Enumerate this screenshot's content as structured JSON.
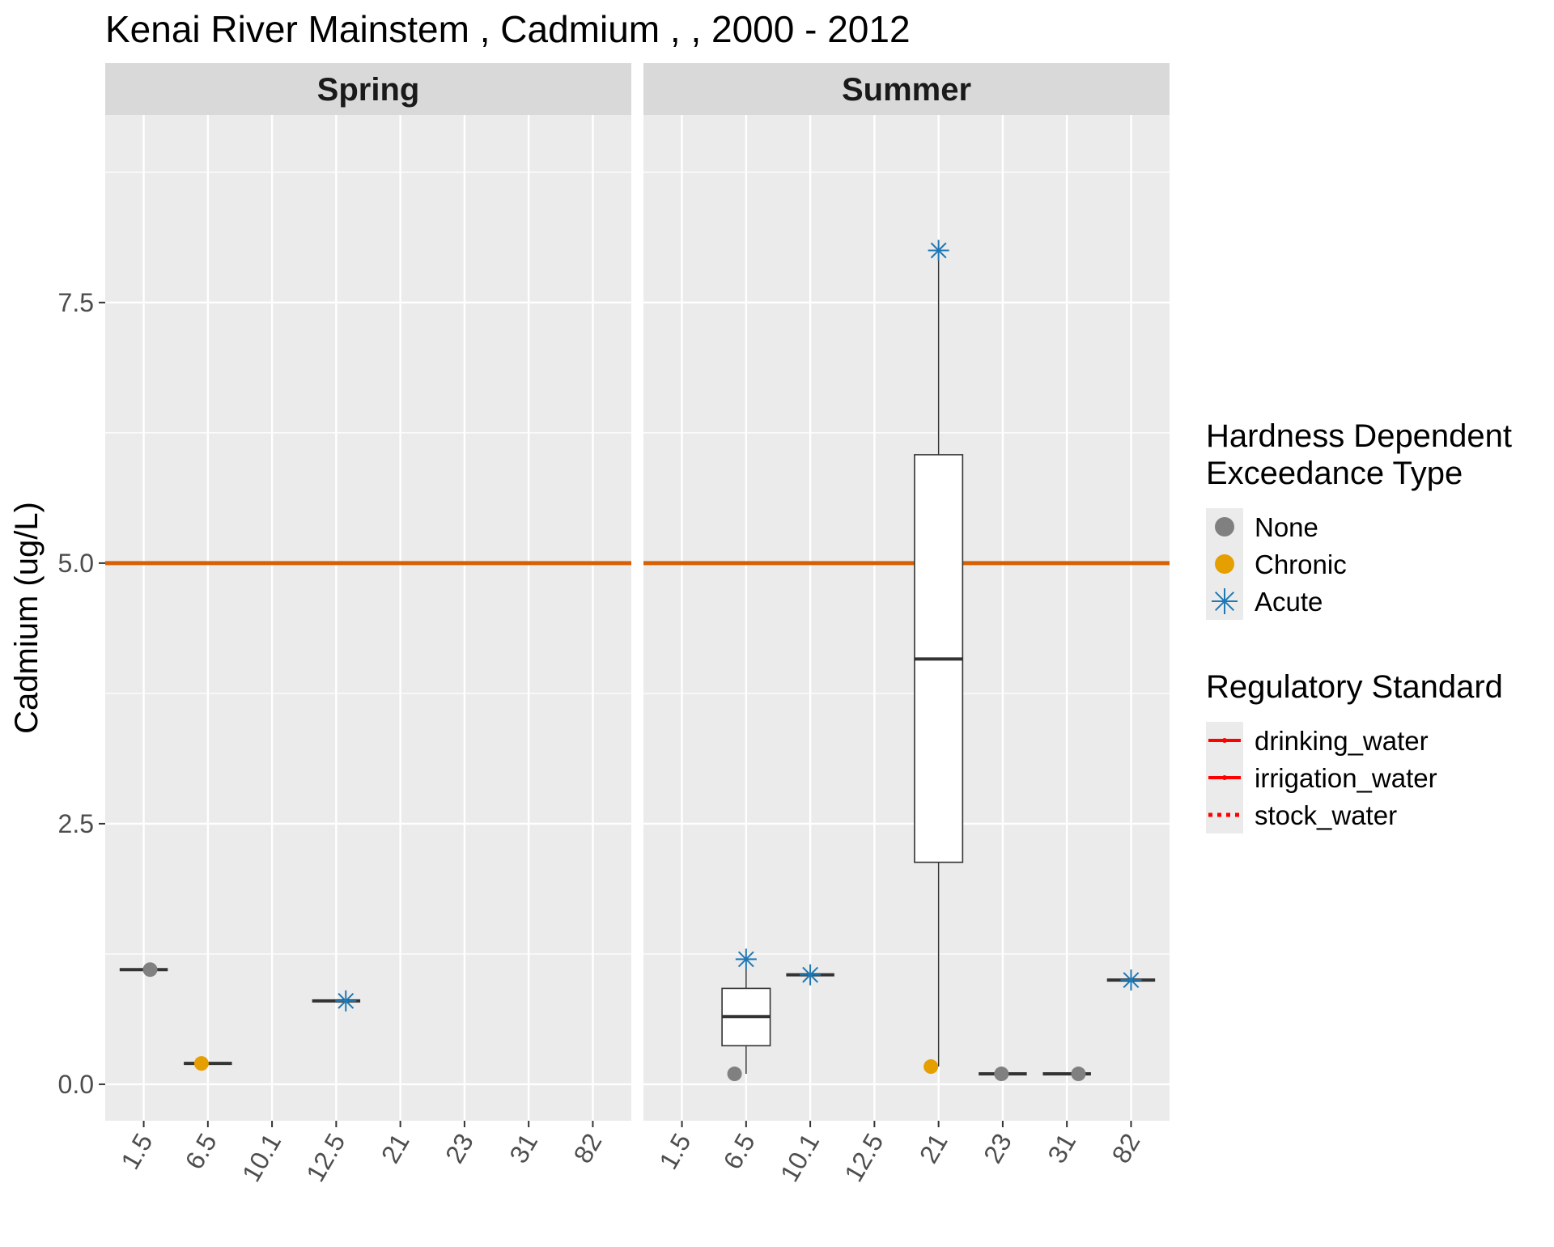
{
  "chart_data": {
    "type": "boxplot",
    "title": "Kenai River Mainstem , Cadmium ,  , 2000 - 2012",
    "xlabel": "",
    "ylabel": "Cadmium (ug/L)",
    "ylim": [
      -0.35,
      9.3
    ],
    "y_breaks": [
      0,
      2.5,
      5,
      7.5
    ],
    "y_tick_labels": [
      "0.0",
      "2.5",
      "5.0",
      "7.5"
    ],
    "y_minor_breaks": [
      1.25,
      3.75,
      6.25,
      8.75
    ],
    "categories": [
      "1.5",
      "6.5",
      "10.1",
      "12.5",
      "21",
      "23",
      "31",
      "82"
    ],
    "grid": true,
    "reference_line": {
      "y": 5.0,
      "color": "#d95f02"
    },
    "colors": {
      "panel_bg": "#ebebeb",
      "strip_bg": "#d9d9d9",
      "grid": "#ffffff",
      "none": "#808080",
      "chronic": "#e69f00",
      "acute": "#1f78b4",
      "median": "#333333",
      "regulatory": "#ff0000"
    },
    "panels": [
      {
        "name": "Spring",
        "boxes": [
          {
            "category": "1.5",
            "min": 1.1,
            "q1": 1.1,
            "median": 1.1,
            "q3": 1.1,
            "max": 1.1
          },
          {
            "category": "6.5",
            "min": 0.2,
            "q1": 0.2,
            "median": 0.2,
            "q3": 0.2,
            "max": 0.2
          },
          {
            "category": "12.5",
            "min": 0.8,
            "q1": 0.8,
            "median": 0.8,
            "q3": 0.8,
            "max": 0.8
          }
        ],
        "points": [
          {
            "category": "1.5",
            "y": 1.1,
            "type": "None",
            "jitter": 0.1
          },
          {
            "category": "6.5",
            "y": 0.2,
            "type": "Chronic",
            "jitter": -0.1
          },
          {
            "category": "12.5",
            "y": 0.8,
            "type": "Acute",
            "jitter": 0.15
          }
        ]
      },
      {
        "name": "Summer",
        "boxes": [
          {
            "category": "6.5",
            "min": 0.1,
            "q1": 0.37,
            "median": 0.65,
            "q3": 0.92,
            "max": 1.2
          },
          {
            "category": "10.1",
            "min": 1.05,
            "q1": 1.05,
            "median": 1.05,
            "q3": 1.05,
            "max": 1.05
          },
          {
            "category": "21",
            "min": 0.17,
            "q1": 2.13,
            "median": 4.08,
            "q3": 6.04,
            "max": 8.0
          },
          {
            "category": "23",
            "min": 0.1,
            "q1": 0.1,
            "median": 0.1,
            "q3": 0.1,
            "max": 0.1
          },
          {
            "category": "31",
            "min": 0.1,
            "q1": 0.1,
            "median": 0.1,
            "q3": 0.1,
            "max": 0.1
          },
          {
            "category": "82",
            "min": 1.0,
            "q1": 1.0,
            "median": 1.0,
            "q3": 1.0,
            "max": 1.0
          }
        ],
        "points": [
          {
            "category": "6.5",
            "y": 0.1,
            "type": "None",
            "jitter": -0.18
          },
          {
            "category": "6.5",
            "y": 1.2,
            "type": "Acute",
            "jitter": 0.0
          },
          {
            "category": "10.1",
            "y": 1.05,
            "type": "Acute",
            "jitter": 0.0
          },
          {
            "category": "21",
            "y": 8.0,
            "type": "Acute",
            "jitter": 0.0
          },
          {
            "category": "21",
            "y": 0.17,
            "type": "Chronic",
            "jitter": -0.12
          },
          {
            "category": "23",
            "y": 0.1,
            "type": "None",
            "jitter": -0.02
          },
          {
            "category": "31",
            "y": 0.1,
            "type": "None",
            "jitter": 0.18
          },
          {
            "category": "82",
            "y": 1.0,
            "type": "Acute",
            "jitter": 0.0
          }
        ]
      }
    ],
    "legends": [
      {
        "title_lines": [
          "Hardness Dependent",
          "Exceedance Type"
        ],
        "entries": [
          {
            "label": "None",
            "shape": "circle",
            "color_key": "none"
          },
          {
            "label": "Chronic",
            "shape": "circle",
            "color_key": "chronic"
          },
          {
            "label": "Acute",
            "shape": "asterisk",
            "color_key": "acute"
          }
        ]
      },
      {
        "title_lines": [
          "Regulatory Standard"
        ],
        "entries": [
          {
            "label": "drinking_water",
            "shape": "line",
            "color_key": "regulatory"
          },
          {
            "label": "irrigation_water",
            "shape": "line",
            "color_key": "regulatory"
          },
          {
            "label": "stock_water",
            "shape": "dotted",
            "color_key": "regulatory"
          }
        ]
      }
    ]
  }
}
